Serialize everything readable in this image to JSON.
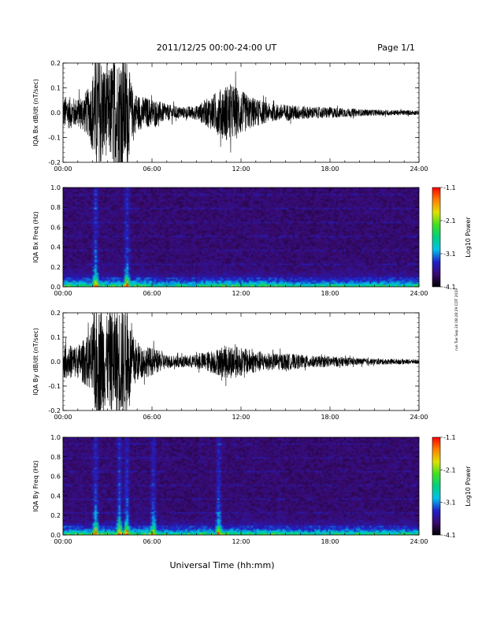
{
  "header": {
    "title": "2011/12/25  00:00-24:00 UT",
    "page": "Page 1/1"
  },
  "x_axis_title": "Universal Time (hh:mm)",
  "run_stamp": "run Tue Sep 24 08:28:29 CDT 2019",
  "colors": {
    "trace": "#000000",
    "colormap": [
      "#000000",
      "#3a0a6e",
      "#2020c8",
      "#00c0e8",
      "#00d080",
      "#40e020",
      "#e0e000",
      "#ff8000",
      "#ff0000"
    ]
  },
  "chart_data": [
    {
      "type": "line",
      "id": "bx-trace",
      "ylabel": "IQA Bx dB/dt (nT/sec)",
      "xlim": [
        0,
        24
      ],
      "ylim": [
        -0.2,
        0.2
      ],
      "x_ticks": [
        "00:00",
        "06:00",
        "12:00",
        "18:00",
        "24:00"
      ],
      "y_ticks": [
        "-0.2",
        "-0.1",
        "0.0",
        "0.1",
        "0.2"
      ],
      "envelope": {
        "x": [
          0,
          1,
          1.8,
          2.2,
          2.6,
          3.0,
          3.4,
          3.9,
          4.3,
          4.7,
          5.2,
          6.0,
          7.0,
          8.0,
          9.0,
          10.0,
          10.5,
          11.0,
          11.5,
          12.0,
          12.5,
          13.0,
          14.0,
          15.0,
          16.0,
          17.0,
          18.0,
          20.0,
          22.0,
          24.0
        ],
        "amplitude": [
          0.06,
          0.05,
          0.09,
          0.2,
          0.2,
          0.14,
          0.2,
          0.2,
          0.2,
          0.08,
          0.06,
          0.05,
          0.03,
          0.02,
          0.025,
          0.06,
          0.08,
          0.1,
          0.1,
          0.08,
          0.06,
          0.05,
          0.03,
          0.03,
          0.025,
          0.02,
          0.02,
          0.012,
          0.01,
          0.008
        ]
      }
    },
    {
      "type": "heatmap",
      "id": "bx-spectrogram",
      "ylabel": "IQA Bx Freq (Hz)",
      "xlim": [
        0,
        24
      ],
      "ylim": [
        0.0,
        1.0
      ],
      "x_ticks": [
        "00:00",
        "06:00",
        "12:00",
        "18:00",
        "24:00"
      ],
      "y_ticks": [
        "0.0",
        "0.2",
        "0.4",
        "0.6",
        "0.8",
        "1.0"
      ],
      "colorbar": {
        "label": "Log10 Power",
        "ticks": [
          "-1.1",
          "-2.1",
          "-3.1",
          "-4.1"
        ],
        "range": [
          -4.1,
          -1.1
        ]
      },
      "bursts": [
        2.2,
        4.3
      ]
    },
    {
      "type": "line",
      "id": "by-trace",
      "ylabel": "IQA By dB/dt (nT/sec)",
      "xlim": [
        0,
        24
      ],
      "ylim": [
        -0.2,
        0.2
      ],
      "x_ticks": [
        "00:00",
        "06:00",
        "12:00",
        "18:00",
        "24:00"
      ],
      "y_ticks": [
        "-0.2",
        "-0.1",
        "0.0",
        "0.1",
        "0.2"
      ],
      "envelope": {
        "x": [
          0,
          1,
          1.8,
          2.2,
          2.6,
          3.0,
          3.4,
          3.9,
          4.3,
          4.7,
          5.2,
          6.0,
          7.0,
          8.0,
          9.0,
          10.0,
          10.5,
          11.0,
          11.5,
          12.0,
          12.5,
          13.0,
          14.0,
          15.0,
          16.0,
          17.0,
          18.0,
          20.0,
          22.0,
          24.0
        ],
        "amplitude": [
          0.06,
          0.06,
          0.1,
          0.2,
          0.2,
          0.16,
          0.2,
          0.2,
          0.2,
          0.1,
          0.06,
          0.05,
          0.025,
          0.02,
          0.025,
          0.04,
          0.05,
          0.06,
          0.06,
          0.05,
          0.045,
          0.04,
          0.03,
          0.03,
          0.025,
          0.02,
          0.02,
          0.012,
          0.01,
          0.008
        ]
      }
    },
    {
      "type": "heatmap",
      "id": "by-spectrogram",
      "ylabel": "IQA By Freq (Hz)",
      "xlim": [
        0,
        24
      ],
      "ylim": [
        0.0,
        1.0
      ],
      "x_ticks": [
        "00:00",
        "06:00",
        "12:00",
        "18:00",
        "24:00"
      ],
      "y_ticks": [
        "0.0",
        "0.2",
        "0.4",
        "0.6",
        "0.8",
        "1.0"
      ],
      "colorbar": {
        "label": "Log10 Power",
        "ticks": [
          "-1.1",
          "-2.1",
          "-3.1",
          "-4.1"
        ],
        "range": [
          -4.1,
          -1.1
        ]
      },
      "bursts": [
        2.2,
        3.8,
        4.3,
        6.1,
        10.5
      ]
    }
  ]
}
